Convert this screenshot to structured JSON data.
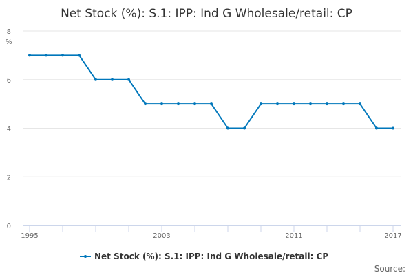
{
  "chart_data": {
    "type": "line",
    "title": "Net Stock (%): S.1: IPP: Ind G Wholesale/retail: CP",
    "ylabel": "%",
    "xlabel": "",
    "ylim": [
      0,
      8
    ],
    "yticks": [
      0,
      2,
      4,
      6,
      8
    ],
    "xlim": [
      1995,
      2017
    ],
    "xtick_labels": [
      1995,
      2003,
      2011,
      2017
    ],
    "grid": true,
    "legend_position": "bottom-center",
    "color": "#0077bb",
    "series": [
      {
        "name": "Net Stock (%): S.1: IPP: Ind G Wholesale/retail: CP",
        "x": [
          1995,
          1996,
          1997,
          1998,
          1999,
          2000,
          2001,
          2002,
          2003,
          2004,
          2005,
          2006,
          2007,
          2008,
          2009,
          2010,
          2011,
          2012,
          2013,
          2014,
          2015,
          2016,
          2017
        ],
        "values": [
          7,
          7,
          7,
          7,
          6,
          6,
          6,
          5,
          5,
          5,
          5,
          5,
          4,
          4,
          5,
          5,
          5,
          5,
          5,
          5,
          5,
          4,
          4
        ]
      }
    ],
    "source_label": "Source:"
  }
}
